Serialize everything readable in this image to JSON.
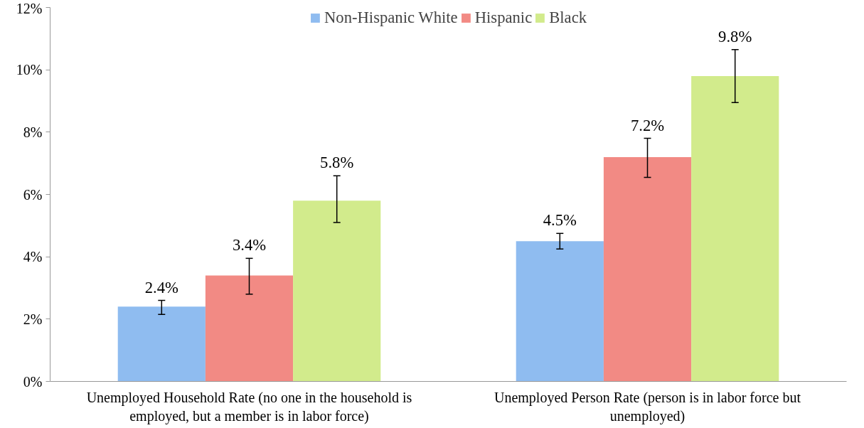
{
  "chart_data": {
    "type": "bar",
    "categories": [
      "Unemployed Household Rate (no one in the household is employed, but a member is in labor force)",
      "Unemployed Person Rate (person is in labor force but unemployed)"
    ],
    "series": [
      {
        "name": "Non-Hispanic White",
        "color": "#8fbcf0",
        "values": [
          2.4,
          4.5
        ],
        "value_labels": [
          "2.4%",
          "4.5%"
        ],
        "errors": [
          [
            2.15,
            2.6
          ],
          [
            4.25,
            4.75
          ]
        ]
      },
      {
        "name": "Hispanic",
        "color": "#f28a84",
        "values": [
          3.4,
          7.2
        ],
        "value_labels": [
          "3.4%",
          "7.2%"
        ],
        "errors": [
          [
            2.8,
            3.95
          ],
          [
            6.55,
            7.8
          ]
        ]
      },
      {
        "name": "Black",
        "color": "#d2eb8c",
        "values": [
          5.8,
          9.8
        ],
        "value_labels": [
          "5.8%",
          "9.8%"
        ],
        "errors": [
          [
            5.1,
            6.6
          ],
          [
            8.95,
            10.65
          ]
        ]
      }
    ],
    "ylim": [
      0,
      12
    ],
    "yticks": [
      {
        "value": 0,
        "label": "0%"
      },
      {
        "value": 2,
        "label": "2%"
      },
      {
        "value": 4,
        "label": "4%"
      },
      {
        "value": 6,
        "label": "6%"
      },
      {
        "value": 8,
        "label": "8%"
      },
      {
        "value": 10,
        "label": "10%"
      },
      {
        "value": 12,
        "label": "12%"
      }
    ],
    "legend": "top",
    "grid": false
  }
}
